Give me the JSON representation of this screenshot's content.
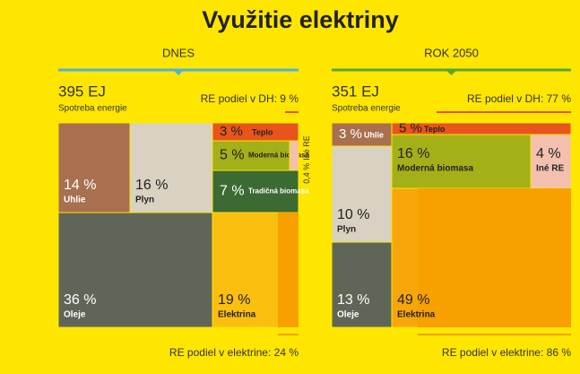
{
  "title": "Využitie elektriny",
  "chart_data": [
    {
      "type": "treemap",
      "heading": "DNES",
      "total": "395 EJ",
      "total_label": "Spotreba energie",
      "re_heat": "RE podiel v DH: 9 %",
      "re_electricity": "RE podiel v elektrine: 24 %",
      "line_color": "#4fb3d9",
      "categories": [
        "Uhlie",
        "Plyn",
        "Oleje",
        "Teplo",
        "Moderná biomasa",
        "Iné RE",
        "Tradičná biomasa",
        "Elektrina"
      ],
      "values": [
        14,
        16,
        36,
        3,
        5,
        0.4,
        7,
        19
      ],
      "value_labels": [
        "14 %",
        "16 %",
        "36 %",
        "3 %",
        "5 %",
        "0,4 %",
        "7 %",
        "19 %"
      ],
      "colors": [
        "#a8704f",
        "#d9d1c1",
        "#5f6658",
        "#e8541c",
        "#a3b018",
        "#f3c0b0",
        "#3b6a33",
        "#fbbf10"
      ]
    },
    {
      "type": "treemap",
      "heading": "ROK 2050",
      "total": "351 EJ",
      "total_label": "Spotreba energie",
      "re_heat": "RE podiel v DH: 77 %",
      "re_electricity": "RE podiel v elektrine: 86 %",
      "line_color": "#5aa532",
      "categories": [
        "Uhlie",
        "Teplo",
        "Moderná biomasa",
        "Iné RE",
        "Plyn",
        "Oleje",
        "Elektrina"
      ],
      "values": [
        3,
        5,
        16,
        4,
        10,
        13,
        49
      ],
      "value_labels": [
        "3 %",
        "5 %",
        "16 %",
        "4 %",
        "10 %",
        "13 %",
        "49 %"
      ],
      "colors": [
        "#a8704f",
        "#e8541c",
        "#a3b018",
        "#f3c0b0",
        "#d9d1c1",
        "#5f6658",
        "#f7a70a"
      ]
    }
  ]
}
